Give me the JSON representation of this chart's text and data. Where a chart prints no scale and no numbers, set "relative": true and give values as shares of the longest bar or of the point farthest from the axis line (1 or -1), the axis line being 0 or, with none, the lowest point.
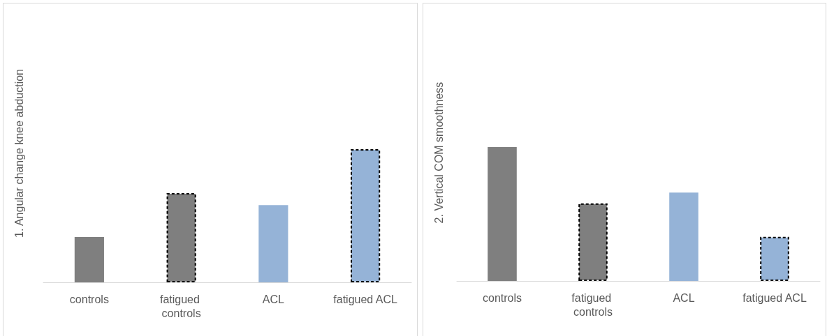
{
  "chart_data": [
    {
      "type": "bar",
      "relative": true,
      "ylabel": "1. Angular change knee abduction",
      "categories": [
        "controls",
        "fatigued controls",
        "ACL",
        "fatigued ACL"
      ],
      "series": [
        {
          "values": [
            0.34,
            null,
            0.58,
            null
          ],
          "colors": [
            "#7f7f7f",
            null,
            "#95b3d7",
            null
          ]
        },
        {
          "values": [
            null,
            0.67,
            null,
            1
          ],
          "colors": [
            null,
            "#7f7f7f",
            null,
            "#95b3d7"
          ],
          "line_style": "dashed"
        }
      ]
    },
    {
      "type": "bar",
      "relative": true,
      "ylabel": "2. Vertical COM smoothness",
      "categories": [
        "controls",
        "fatigued controls",
        "ACL",
        "fatigued ACL"
      ],
      "series": [
        {
          "values": [
            1,
            null,
            0.66,
            null
          ],
          "colors": [
            "#7f7f7f",
            null,
            "#95b3d7",
            null
          ]
        },
        {
          "values": [
            null,
            0.58,
            null,
            0.33
          ],
          "colors": [
            null,
            "#7f7f7f",
            null,
            "#95b3d7"
          ],
          "line_style": "dashed"
        }
      ]
    }
  ]
}
